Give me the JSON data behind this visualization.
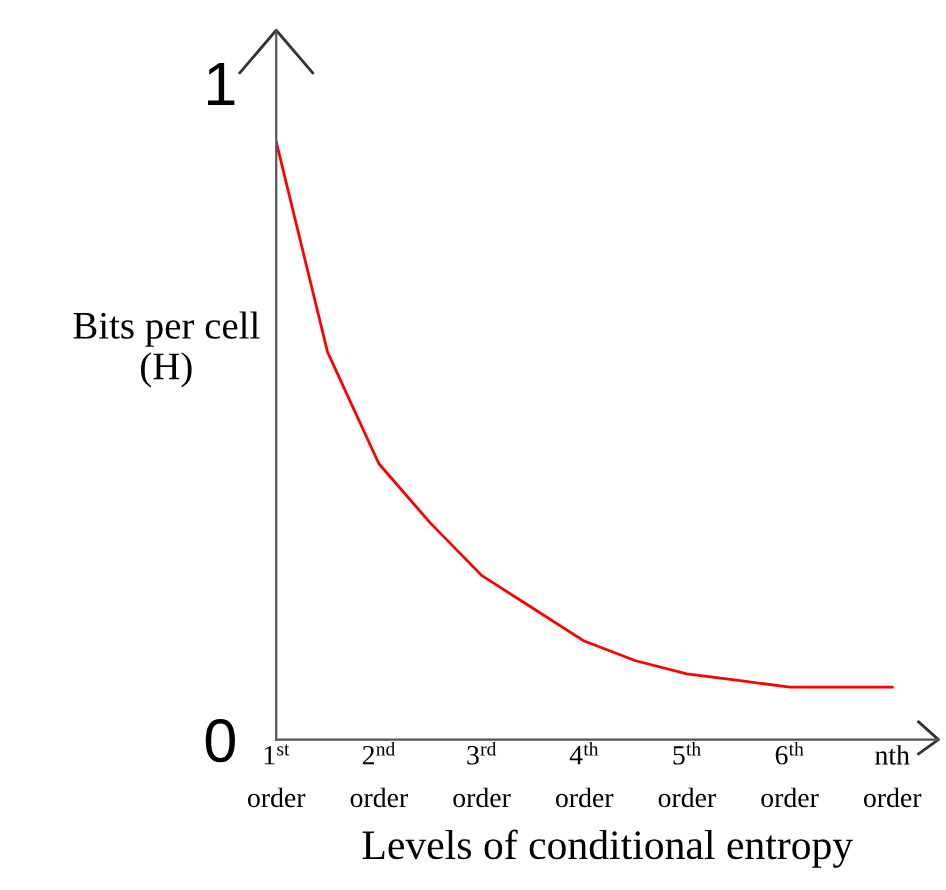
{
  "chart_data": {
    "type": "line",
    "xlabel": "Levels of conditional entropy",
    "ylabel": "Bits per cell\n(H)",
    "categories": [
      "1$^{st}$\norder",
      null,
      "2$^{nd}$\norder",
      null,
      "3$^{rd}$\norder",
      null,
      "4$^{th}$\norder",
      null,
      "5$^{th}$\norder",
      null,
      "6$^{th}$\norder",
      null,
      "nth\norder"
    ],
    "series": [
      {
        "color": "#ff0000",
        "values": [
          0.91,
          0.59,
          0.42,
          0.33,
          0.25,
          0.2,
          0.15,
          0.12,
          0.1,
          0.09,
          0.08,
          0.08,
          0.08
        ]
      }
    ],
    "ylim": [
      0,
      1.08
    ],
    "yticks": [
      0,
      1
    ],
    "grid": false,
    "legend": false,
    "marker": "none",
    "line_style": "solid"
  }
}
